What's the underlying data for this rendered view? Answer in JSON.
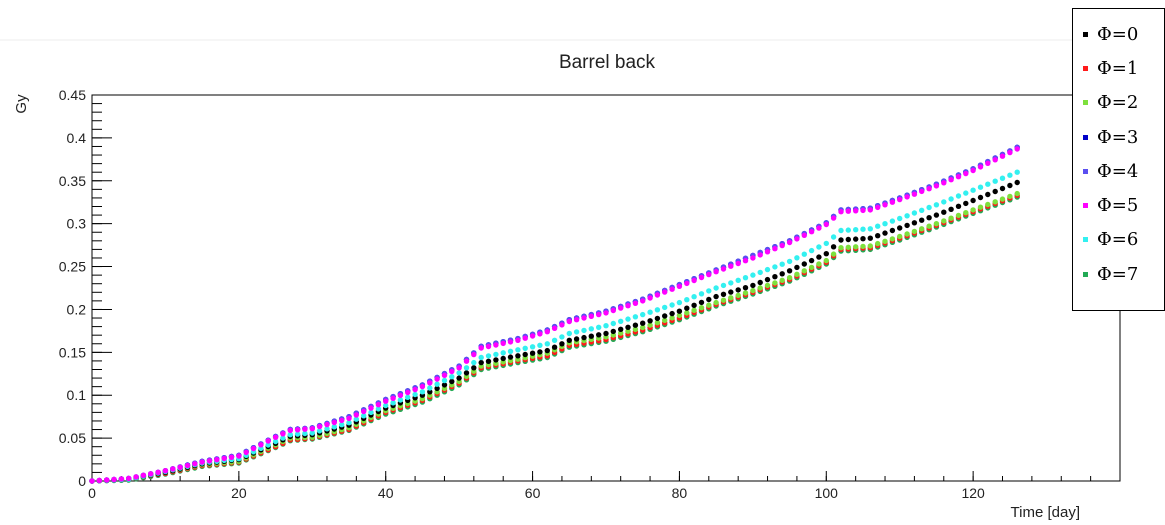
{
  "chart_data": {
    "type": "scatter",
    "title": "Barrel back",
    "xlabel": "Time [day]",
    "ylabel": "Gy",
    "xlim": [
      0,
      140
    ],
    "ylim": [
      0,
      0.45
    ],
    "x_ticks": [
      "0",
      "20",
      "40",
      "60",
      "80",
      "100",
      "120"
    ],
    "y_ticks": [
      "0",
      "0.05",
      "0.1",
      "0.15",
      "0.2",
      "0.25",
      "0.3",
      "0.35",
      "0.4",
      "0.45"
    ],
    "grid": false,
    "legend_position": "top-right",
    "x_sample_days": [
      0,
      5,
      10,
      15,
      20,
      25,
      27,
      30,
      35,
      40,
      45,
      50,
      53,
      58,
      62,
      65,
      70,
      75,
      80,
      85,
      90,
      95,
      100,
      102,
      106,
      110,
      115,
      120,
      126
    ],
    "series": [
      {
        "name": "Φ=0",
        "color": "#000000",
        "values": [
          0.0,
          0.002,
          0.01,
          0.02,
          0.025,
          0.044,
          0.052,
          0.054,
          0.065,
          0.085,
          0.1,
          0.12,
          0.138,
          0.146,
          0.152,
          0.164,
          0.172,
          0.184,
          0.198,
          0.215,
          0.228,
          0.245,
          0.265,
          0.281,
          0.283,
          0.295,
          0.31,
          0.327,
          0.348
        ]
      },
      {
        "name": "Φ=1",
        "color": "#ff1a1a",
        "values": [
          0.0,
          0.002,
          0.009,
          0.018,
          0.022,
          0.04,
          0.048,
          0.05,
          0.06,
          0.08,
          0.094,
          0.114,
          0.132,
          0.14,
          0.146,
          0.158,
          0.165,
          0.176,
          0.19,
          0.206,
          0.22,
          0.235,
          0.255,
          0.27,
          0.272,
          0.283,
          0.298,
          0.314,
          0.333
        ]
      },
      {
        "name": "Φ=2",
        "color": "#7de03c",
        "values": [
          0.0,
          0.002,
          0.01,
          0.019,
          0.023,
          0.042,
          0.05,
          0.051,
          0.062,
          0.082,
          0.096,
          0.116,
          0.134,
          0.142,
          0.149,
          0.161,
          0.168,
          0.179,
          0.193,
          0.208,
          0.222,
          0.237,
          0.257,
          0.272,
          0.274,
          0.285,
          0.3,
          0.316,
          0.335
        ]
      },
      {
        "name": "Φ=3",
        "color": "#0000c8",
        "values": [
          0.0,
          0.003,
          0.012,
          0.023,
          0.03,
          0.052,
          0.06,
          0.062,
          0.075,
          0.095,
          0.112,
          0.134,
          0.157,
          0.166,
          0.176,
          0.188,
          0.198,
          0.212,
          0.229,
          0.246,
          0.263,
          0.28,
          0.301,
          0.316,
          0.318,
          0.33,
          0.346,
          0.364,
          0.389
        ]
      },
      {
        "name": "Φ=4",
        "color": "#5a4ff0",
        "values": [
          0.0,
          0.003,
          0.012,
          0.023,
          0.03,
          0.052,
          0.06,
          0.062,
          0.075,
          0.095,
          0.112,
          0.134,
          0.157,
          0.166,
          0.176,
          0.188,
          0.198,
          0.212,
          0.229,
          0.246,
          0.263,
          0.28,
          0.301,
          0.316,
          0.318,
          0.33,
          0.346,
          0.364,
          0.389
        ]
      },
      {
        "name": "Φ=5",
        "color": "#ff00ff",
        "values": [
          0.0,
          0.003,
          0.012,
          0.022,
          0.029,
          0.051,
          0.059,
          0.061,
          0.073,
          0.093,
          0.11,
          0.132,
          0.155,
          0.164,
          0.174,
          0.186,
          0.196,
          0.21,
          0.227,
          0.244,
          0.26,
          0.278,
          0.299,
          0.314,
          0.316,
          0.328,
          0.344,
          0.362,
          0.387
        ]
      },
      {
        "name": "Φ=6",
        "color": "#33f0f0",
        "values": [
          0.0,
          0.002,
          0.011,
          0.021,
          0.026,
          0.046,
          0.054,
          0.056,
          0.068,
          0.088,
          0.104,
          0.126,
          0.144,
          0.153,
          0.16,
          0.172,
          0.181,
          0.194,
          0.208,
          0.225,
          0.24,
          0.256,
          0.277,
          0.292,
          0.294,
          0.306,
          0.322,
          0.339,
          0.36
        ]
      },
      {
        "name": "Φ=7",
        "color": "#22aa55",
        "values": [
          0.0,
          0.001,
          0.008,
          0.017,
          0.021,
          0.039,
          0.047,
          0.049,
          0.059,
          0.078,
          0.092,
          0.112,
          0.13,
          0.138,
          0.144,
          0.156,
          0.163,
          0.174,
          0.188,
          0.204,
          0.218,
          0.233,
          0.253,
          0.268,
          0.27,
          0.281,
          0.296,
          0.312,
          0.331
        ]
      }
    ]
  }
}
